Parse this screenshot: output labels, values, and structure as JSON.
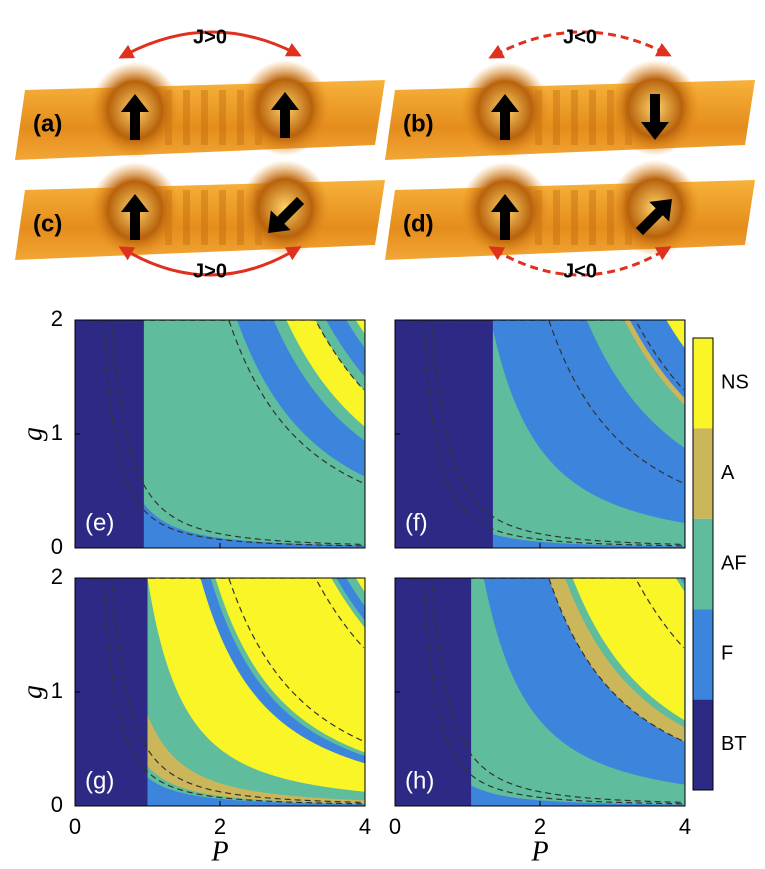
{
  "spin_panels": [
    {
      "label": "(a)",
      "coupling": "J>0"
    },
    {
      "label": "(b)",
      "coupling": "J<0"
    },
    {
      "label": "(c)",
      "coupling": "J>0"
    },
    {
      "label": "(d)",
      "coupling": "J<0"
    }
  ],
  "phase_maps": {
    "panels": [
      "(e)",
      "(f)",
      "(g)",
      "(h)"
    ],
    "xlabel": "P",
    "ylabel": "g",
    "xlim": [
      0,
      4
    ],
    "ylim": [
      0,
      2
    ],
    "xticks": [
      0,
      2,
      4
    ],
    "yticks": [
      0,
      1,
      2
    ]
  },
  "colorbar": {
    "categories": [
      "NS",
      "A",
      "AF",
      "F",
      "BT"
    ],
    "colors": [
      "#f9f526",
      "#ccb65a",
      "#5fbc9c",
      "#3c84dc",
      "#2d2a86"
    ]
  }
}
